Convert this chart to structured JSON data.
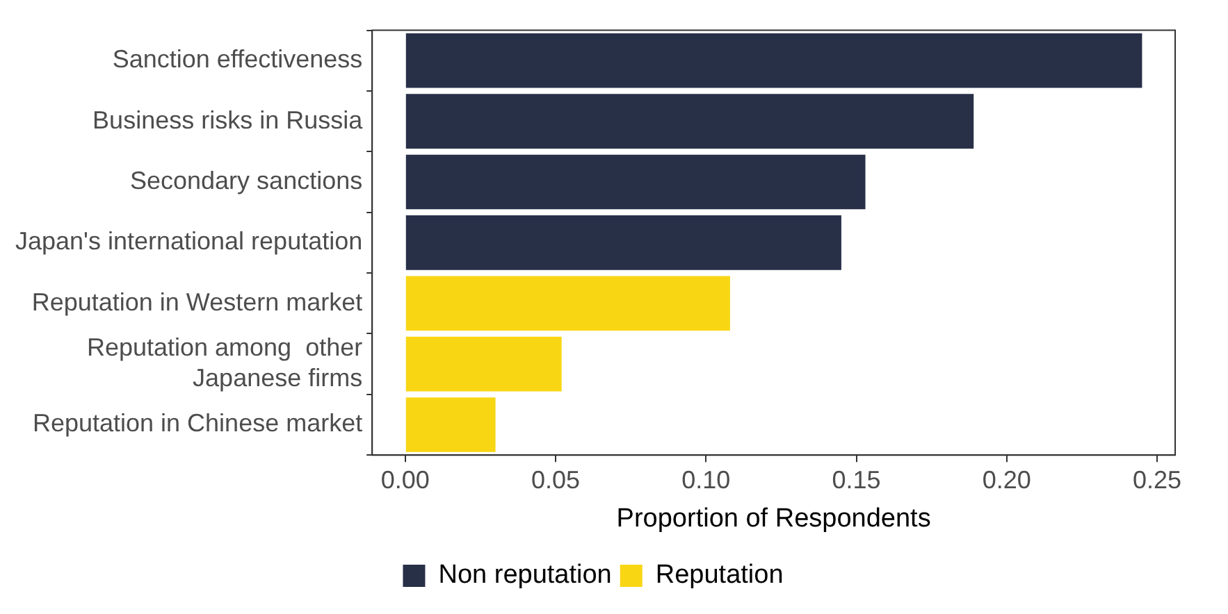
{
  "chart_data": {
    "type": "bar",
    "orientation": "horizontal",
    "xlabel": "Proportion of Respondents",
    "categories": [
      "Sanction effectiveness",
      "Business risks in Russia",
      "Secondary sanctions",
      "Japan's international reputation",
      "Reputation in Western market",
      "Reputation among  other\nJapanese firms",
      "Reputation in Chinese market"
    ],
    "series": [
      {
        "name": "Non reputation",
        "color": "#283048",
        "values": [
          0.245,
          0.189,
          0.153,
          0.145,
          null,
          null,
          null
        ]
      },
      {
        "name": "Reputation",
        "color": "#f9d613",
        "values": [
          null,
          null,
          null,
          null,
          0.108,
          0.052,
          0.03
        ]
      }
    ],
    "xlim": [
      -0.011,
      0.256
    ],
    "xticks": [
      {
        "value": 0,
        "label": "0.00"
      },
      {
        "value": 0.05,
        "label": "0.05"
      },
      {
        "value": 0.1,
        "label": "0.10"
      },
      {
        "value": 0.15,
        "label": "0.15"
      },
      {
        "value": 0.2,
        "label": "0.20"
      },
      {
        "value": 0.25,
        "label": "0.25"
      }
    ],
    "grid": false,
    "legend": "bottom"
  }
}
